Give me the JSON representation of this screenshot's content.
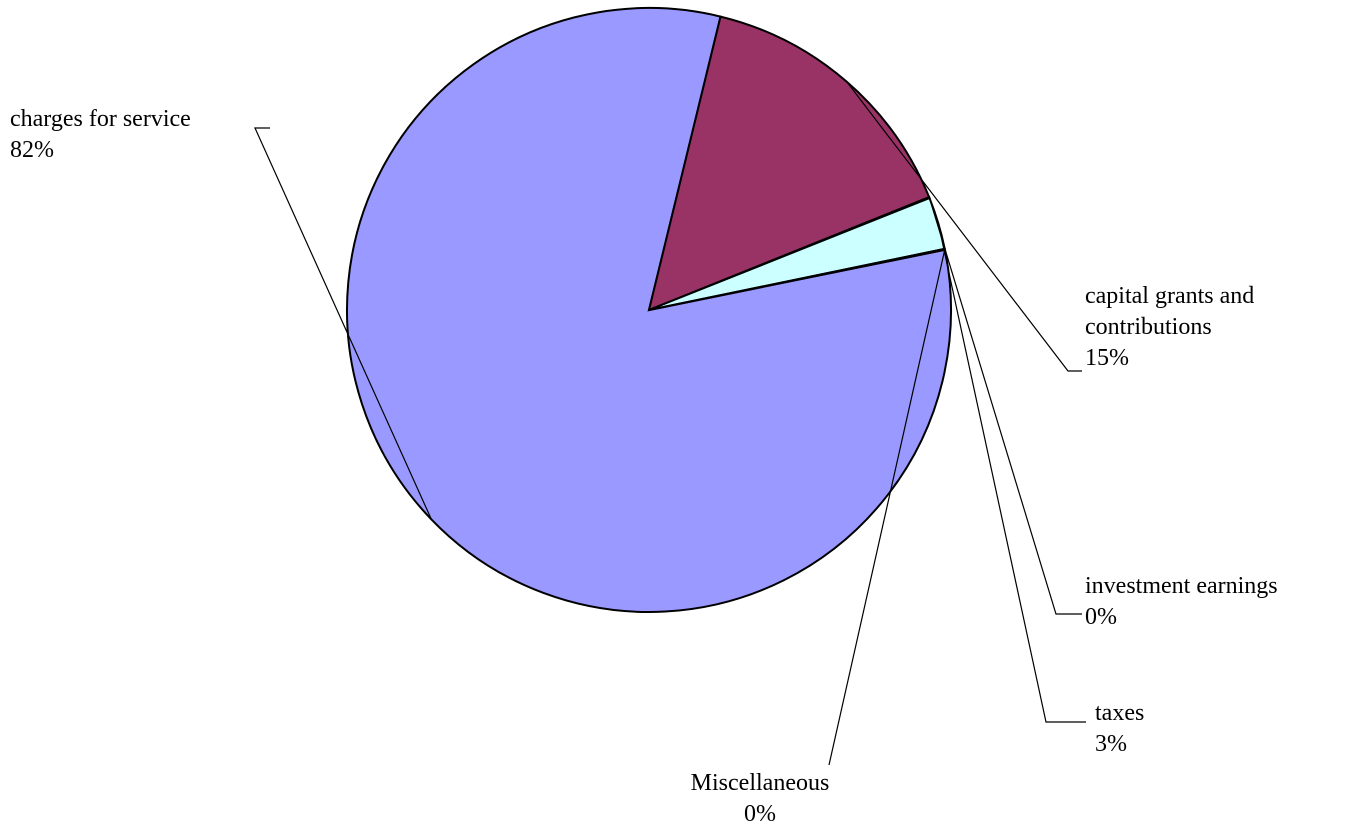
{
  "chart_data": {
    "type": "pie",
    "title": "",
    "slices": [
      {
        "name": "charges for service",
        "label_lines": [
          "charges for service"
        ],
        "percent_label": "82%",
        "value": 82.0,
        "color": "#9999ff"
      },
      {
        "name": "capital grants and contributions",
        "label_lines": [
          "capital grants and",
          "contributions"
        ],
        "percent_label": "15%",
        "value": 15.1,
        "color": "#993366"
      },
      {
        "name": "investment earnings",
        "label_lines": [
          "investment earnings"
        ],
        "percent_label": "0%",
        "value": 0.05,
        "color": "#ffffcc"
      },
      {
        "name": "taxes",
        "label_lines": [
          "taxes"
        ],
        "percent_label": "3%",
        "value": 2.8,
        "color": "#ccffff"
      },
      {
        "name": "Miscellaneous",
        "label_lines": [
          "Miscellaneous"
        ],
        "percent_label": "0%",
        "value": 0.05,
        "color": "#660066"
      }
    ],
    "legend": "none",
    "data_labels": "outside-with-leader-lines"
  }
}
